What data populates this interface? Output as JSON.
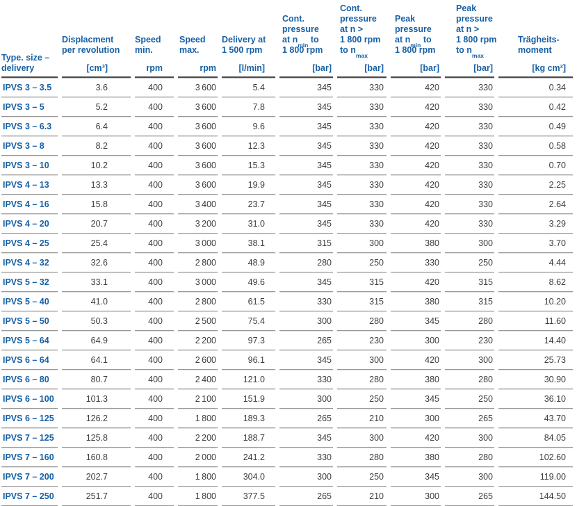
{
  "colors": {
    "accent_blue": "#1760a6",
    "text_gray": "#3d3d3d",
    "rule_dark": "#4a4a4a",
    "rule_midlight": "#c8c8c8",
    "rule_gray": "#979797",
    "rule_light": "#e0e0e0",
    "background": "#ffffff"
  },
  "table": {
    "columns": [
      {
        "id": "type",
        "lines": [
          [
            "Type. size –"
          ],
          [
            "delivery"
          ]
        ],
        "unit": null
      },
      {
        "id": "displacement",
        "lines": [
          [
            "Displacment"
          ],
          [
            "per revolution"
          ]
        ],
        "unit": "[cm³]"
      },
      {
        "id": "speed-min",
        "lines": [
          [
            "Speed"
          ],
          [
            "min."
          ]
        ],
        "unit": "rpm"
      },
      {
        "id": "speed-max",
        "lines": [
          [
            "Speed"
          ],
          [
            "max."
          ]
        ],
        "unit": "rpm"
      },
      {
        "id": "delivery-1500rpm",
        "lines": [
          [
            "Delivery at"
          ],
          [
            "1 500 rpm"
          ]
        ],
        "unit": "[l/min]"
      },
      {
        "id": "cont-pressure-low",
        "lines": [
          [
            "Cont."
          ],
          [
            "pressure"
          ],
          [
            "at n",
            {
              "sub": "min"
            },
            " to"
          ],
          [
            "1 800 rpm"
          ]
        ],
        "unit": "[bar]"
      },
      {
        "id": "cont-pressure-high",
        "lines": [
          [
            "Cont."
          ],
          [
            "pressure"
          ],
          [
            "at n >"
          ],
          [
            "1 800 rpm"
          ],
          [
            "to n",
            {
              "sub": "max"
            }
          ]
        ],
        "unit": "[bar]"
      },
      {
        "id": "peak-pressure-low",
        "lines": [
          [
            "Peak"
          ],
          [
            "pressure"
          ],
          [
            "at n",
            {
              "sub": "min"
            },
            " to"
          ],
          [
            "1 800 rpm"
          ]
        ],
        "unit": "[bar]"
      },
      {
        "id": "peak-pressure-high",
        "lines": [
          [
            "Peak"
          ],
          [
            "pressure"
          ],
          [
            "at n >"
          ],
          [
            "1 800 rpm"
          ],
          [
            "to n",
            {
              "sub": "max"
            }
          ]
        ],
        "unit": "[bar]"
      },
      {
        "id": "inertia",
        "lines": [
          [
            "Trägheits-"
          ],
          [
            "moment"
          ]
        ],
        "unit": "[kg cm²]"
      }
    ],
    "rows": [
      {
        "type": "IPVS 3 – 3.5",
        "values": [
          "3.6",
          "400",
          "3 600",
          "5.4",
          "345",
          "330",
          "420",
          "330",
          "0.34"
        ]
      },
      {
        "type": "IPVS 3 – 5",
        "values": [
          "5.2",
          "400",
          "3 600",
          "7.8",
          "345",
          "330",
          "420",
          "330",
          "0.42"
        ]
      },
      {
        "type": "IPVS 3 – 6.3",
        "values": [
          "6.4",
          "400",
          "3 600",
          "9.6",
          "345",
          "330",
          "420",
          "330",
          "0.49"
        ]
      },
      {
        "type": "IPVS 3 – 8",
        "values": [
          "8.2",
          "400",
          "3 600",
          "12.3",
          "345",
          "330",
          "420",
          "330",
          "0.58"
        ]
      },
      {
        "type": "IPVS 3 – 10",
        "values": [
          "10.2",
          "400",
          "3 600",
          "15.3",
          "345",
          "330",
          "420",
          "330",
          "0.70"
        ]
      },
      {
        "type": "IPVS 4 – 13",
        "values": [
          "13.3",
          "400",
          "3 600",
          "19.9",
          "345",
          "330",
          "420",
          "330",
          "2.25"
        ]
      },
      {
        "type": "IPVS 4 – 16",
        "values": [
          "15.8",
          "400",
          "3 400",
          "23.7",
          "345",
          "330",
          "420",
          "330",
          "2.64"
        ]
      },
      {
        "type": "IPVS 4 – 20",
        "values": [
          "20.7",
          "400",
          "3 200",
          "31.0",
          "345",
          "330",
          "420",
          "330",
          "3.29"
        ]
      },
      {
        "type": "IPVS 4 – 25",
        "values": [
          "25.4",
          "400",
          "3 000",
          "38.1",
          "315",
          "300",
          "380",
          "300",
          "3.70"
        ]
      },
      {
        "type": "IPVS 4 – 32",
        "values": [
          "32.6",
          "400",
          "2 800",
          "48.9",
          "280",
          "250",
          "330",
          "250",
          "4.44"
        ]
      },
      {
        "type": "IPVS 5 – 32",
        "values": [
          "33.1",
          "400",
          "3 000",
          "49.6",
          "345",
          "315",
          "420",
          "315",
          "8.62"
        ]
      },
      {
        "type": "IPVS 5 – 40",
        "values": [
          "41.0",
          "400",
          "2 800",
          "61.5",
          "330",
          "315",
          "380",
          "315",
          "10.20"
        ]
      },
      {
        "type": "IPVS 5 – 50",
        "values": [
          "50.3",
          "400",
          "2 500",
          "75.4",
          "300",
          "280",
          "345",
          "280",
          "11.60"
        ]
      },
      {
        "type": "IPVS 5 – 64",
        "values": [
          "64.9",
          "400",
          "2 200",
          "97.3",
          "265",
          "230",
          "300",
          "230",
          "14.40"
        ]
      },
      {
        "type": "IPVS 6 – 64",
        "values": [
          "64.1",
          "400",
          "2 600",
          "96.1",
          "345",
          "300",
          "420",
          "300",
          "25.73"
        ]
      },
      {
        "type": "IPVS 6 – 80",
        "values": [
          "80.7",
          "400",
          "2 400",
          "121.0",
          "330",
          "280",
          "380",
          "280",
          "30.90"
        ]
      },
      {
        "type": "IPVS 6 – 100",
        "values": [
          "101.3",
          "400",
          "2 100",
          "151.9",
          "300",
          "250",
          "345",
          "250",
          "36.10"
        ]
      },
      {
        "type": "IPVS 6 – 125",
        "values": [
          "126.2",
          "400",
          "1 800",
          "189.3",
          "265",
          "210",
          "300",
          "265",
          "43.70"
        ]
      },
      {
        "type": "IPVS 7 – 125",
        "values": [
          "125.8",
          "400",
          "2 200",
          "188.7",
          "345",
          "300",
          "420",
          "300",
          "84.05"
        ]
      },
      {
        "type": "IPVS 7 – 160",
        "values": [
          "160.8",
          "400",
          "2 000",
          "241.2",
          "330",
          "280",
          "380",
          "280",
          "102.60"
        ]
      },
      {
        "type": "IPVS 7 – 200",
        "values": [
          "202.7",
          "400",
          "1 800",
          "304.0",
          "300",
          "250",
          "345",
          "300",
          "119.00"
        ]
      },
      {
        "type": "IPVS 7 – 250",
        "values": [
          "251.7",
          "400",
          "1 800",
          "377.5",
          "265",
          "210",
          "300",
          "265",
          "144.50"
        ]
      }
    ]
  }
}
